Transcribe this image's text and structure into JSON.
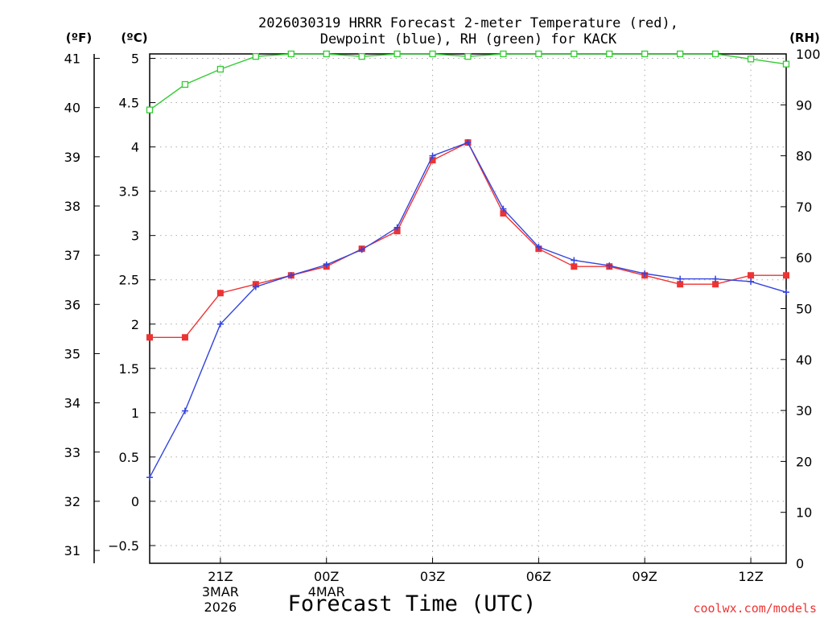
{
  "chart_data": {
    "type": "line",
    "title": [
      "2026030319 HRRR Forecast 2-meter Temperature (red),",
      "Dewpoint (blue), RH (green) for KACK"
    ],
    "xlabel": "Forecast Time (UTC)",
    "watermark": "coolwx.com/models",
    "units": {
      "fahrenheit": "(ºF)",
      "celsius": "(ºC)",
      "rh": "(RH)"
    },
    "x_ticks": [
      {
        "hour": 2,
        "lines": [
          "21Z",
          "3MAR",
          "2026"
        ]
      },
      {
        "hour": 5,
        "lines": [
          "00Z",
          "4MAR"
        ]
      },
      {
        "hour": 8,
        "lines": [
          "03Z"
        ]
      },
      {
        "hour": 11,
        "lines": [
          "06Z"
        ]
      },
      {
        "hour": 14,
        "lines": [
          "09Z"
        ]
      },
      {
        "hour": 17,
        "lines": [
          "12Z"
        ]
      }
    ],
    "xlim": [
      0,
      18
    ],
    "ylim_c": [
      -0.7,
      5.05
    ],
    "y_ticks_c": [
      "−0.5",
      "0",
      "0.5",
      "1",
      "1.5",
      "2",
      "2.5",
      "3",
      "3.5",
      "4",
      "4.5",
      "5"
    ],
    "y_ticks_f": [
      "31",
      "32",
      "33",
      "34",
      "35",
      "36",
      "37",
      "38",
      "39",
      "40",
      "41"
    ],
    "ylim_rh": [
      0,
      100
    ],
    "y_ticks_rh": [
      "0",
      "10",
      "20",
      "30",
      "40",
      "50",
      "60",
      "70",
      "80",
      "90",
      "100"
    ],
    "grid": true,
    "series": [
      {
        "name": "Temperature",
        "axis": "celsius",
        "color": "#ee3333",
        "marker": "filled-square",
        "x": [
          0,
          1,
          2,
          3,
          4,
          5,
          6,
          7,
          8,
          9,
          10,
          11,
          12,
          13,
          14,
          15,
          16,
          17,
          18
        ],
        "values": [
          1.85,
          1.85,
          2.35,
          2.45,
          2.55,
          2.65,
          2.85,
          3.05,
          3.85,
          4.05,
          3.25,
          2.85,
          2.65,
          2.65,
          2.55,
          2.45,
          2.45,
          2.55,
          2.55
        ]
      },
      {
        "name": "Dewpoint",
        "axis": "celsius",
        "color": "#3344dd",
        "marker": "plus",
        "x": [
          0,
          1,
          2,
          3,
          4,
          5,
          6,
          7,
          8,
          9,
          10,
          11,
          12,
          13,
          14,
          15,
          16,
          17,
          18
        ],
        "values": [
          0.27,
          1.02,
          2.0,
          2.42,
          2.55,
          2.67,
          2.84,
          3.09,
          3.9,
          4.05,
          3.3,
          2.87,
          2.72,
          2.66,
          2.57,
          2.51,
          2.51,
          2.48,
          2.36
        ]
      },
      {
        "name": "RH",
        "axis": "rh",
        "color": "#33cc33",
        "marker": "open-square",
        "x": [
          0,
          1,
          2,
          3,
          4,
          5,
          6,
          7,
          8,
          9,
          10,
          11,
          12,
          13,
          14,
          15,
          16,
          17,
          18
        ],
        "values": [
          89,
          94,
          97,
          99.5,
          100,
          100,
          99.5,
          100,
          100,
          99.5,
          100,
          100,
          100,
          100,
          100,
          100,
          100,
          99,
          98
        ]
      }
    ]
  }
}
